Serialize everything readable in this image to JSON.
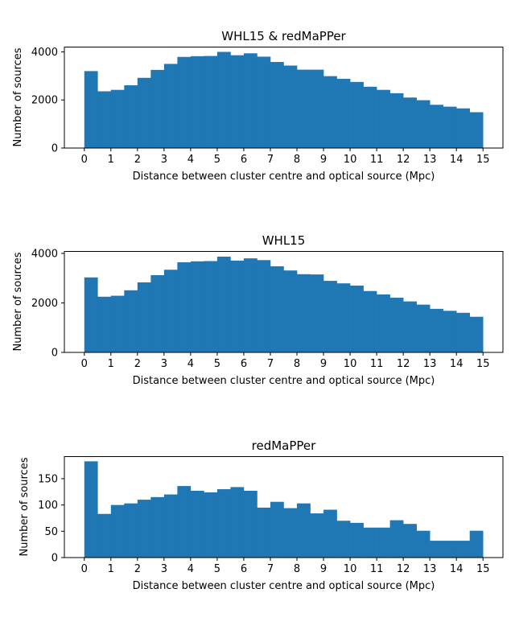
{
  "chart_data": [
    {
      "type": "bar",
      "title": "WHL15 & redMaPPer",
      "xlabel": "Distance between cluster centre and optical source (Mpc)",
      "ylabel": "Number of sources",
      "bin_edges": [
        0,
        0.5,
        1,
        1.5,
        2,
        2.5,
        3,
        3.5,
        4,
        4.5,
        5,
        5.5,
        6,
        6.5,
        7,
        7.5,
        8,
        8.5,
        9,
        9.5,
        10,
        10.5,
        11,
        11.5,
        12,
        12.5,
        13,
        13.5,
        14,
        14.5,
        15
      ],
      "values": [
        3200,
        2360,
        2420,
        2610,
        2920,
        3250,
        3500,
        3790,
        3820,
        3830,
        4000,
        3860,
        3940,
        3800,
        3580,
        3430,
        3260,
        3260,
        2990,
        2880,
        2750,
        2550,
        2420,
        2280,
        2100,
        1990,
        1800,
        1720,
        1650,
        1490
      ],
      "xlim": [
        -0.75,
        15.75
      ],
      "ylim": [
        0,
        4200
      ],
      "xticks": [
        "0",
        "1",
        "2",
        "3",
        "4",
        "5",
        "6",
        "7",
        "8",
        "9",
        "10",
        "11",
        "12",
        "13",
        "14",
        "15"
      ],
      "yticks": [
        "0",
        "2000",
        "4000"
      ],
      "color": "#1f77b4"
    },
    {
      "type": "bar",
      "title": "WHL15",
      "xlabel": "Distance between cluster centre and optical source (Mpc)",
      "ylabel": "Number of sources",
      "bin_edges": [
        0,
        0.5,
        1,
        1.5,
        2,
        2.5,
        3,
        3.5,
        4,
        4.5,
        5,
        5.5,
        6,
        6.5,
        7,
        7.5,
        8,
        8.5,
        9,
        9.5,
        10,
        10.5,
        11,
        11.5,
        12,
        12.5,
        13,
        13.5,
        14,
        14.5,
        15
      ],
      "values": [
        3030,
        2250,
        2290,
        2510,
        2830,
        3120,
        3340,
        3640,
        3680,
        3690,
        3870,
        3710,
        3800,
        3730,
        3480,
        3310,
        3160,
        3150,
        2890,
        2790,
        2700,
        2480,
        2340,
        2210,
        2060,
        1930,
        1760,
        1680,
        1600,
        1440
      ],
      "xlim": [
        -0.75,
        15.75
      ],
      "ylim": [
        0,
        4080
      ],
      "xticks": [
        "0",
        "1",
        "2",
        "3",
        "4",
        "5",
        "6",
        "7",
        "8",
        "9",
        "10",
        "11",
        "12",
        "13",
        "14",
        "15"
      ],
      "yticks": [
        "0",
        "2000",
        "4000"
      ],
      "color": "#1f77b4"
    },
    {
      "type": "bar",
      "title": "redMaPPer",
      "xlabel": "Distance between cluster centre and optical source (Mpc)",
      "ylabel": "Number of sources",
      "bin_edges": [
        0,
        0.5,
        1,
        1.5,
        2,
        2.5,
        3,
        3.5,
        4,
        4.5,
        5,
        5.5,
        6,
        6.5,
        7,
        7.5,
        8,
        8.5,
        9,
        9.5,
        10,
        10.5,
        11,
        11.5,
        12,
        12.5,
        13,
        13.5,
        14,
        14.5,
        15
      ],
      "values": [
        183,
        83,
        100,
        103,
        110,
        115,
        120,
        136,
        127,
        124,
        130,
        134,
        127,
        95,
        106,
        94,
        103,
        84,
        91,
        70,
        66,
        57,
        57,
        71,
        64,
        51,
        32,
        32,
        32,
        51
      ],
      "xlim": [
        -0.75,
        15.75
      ],
      "ylim": [
        0,
        192
      ],
      "xticks": [
        "0",
        "1",
        "2",
        "3",
        "4",
        "5",
        "6",
        "7",
        "8",
        "9",
        "10",
        "11",
        "12",
        "13",
        "14",
        "15"
      ],
      "yticks": [
        "0",
        "50",
        "100",
        "150"
      ],
      "color": "#1f77b4"
    }
  ]
}
